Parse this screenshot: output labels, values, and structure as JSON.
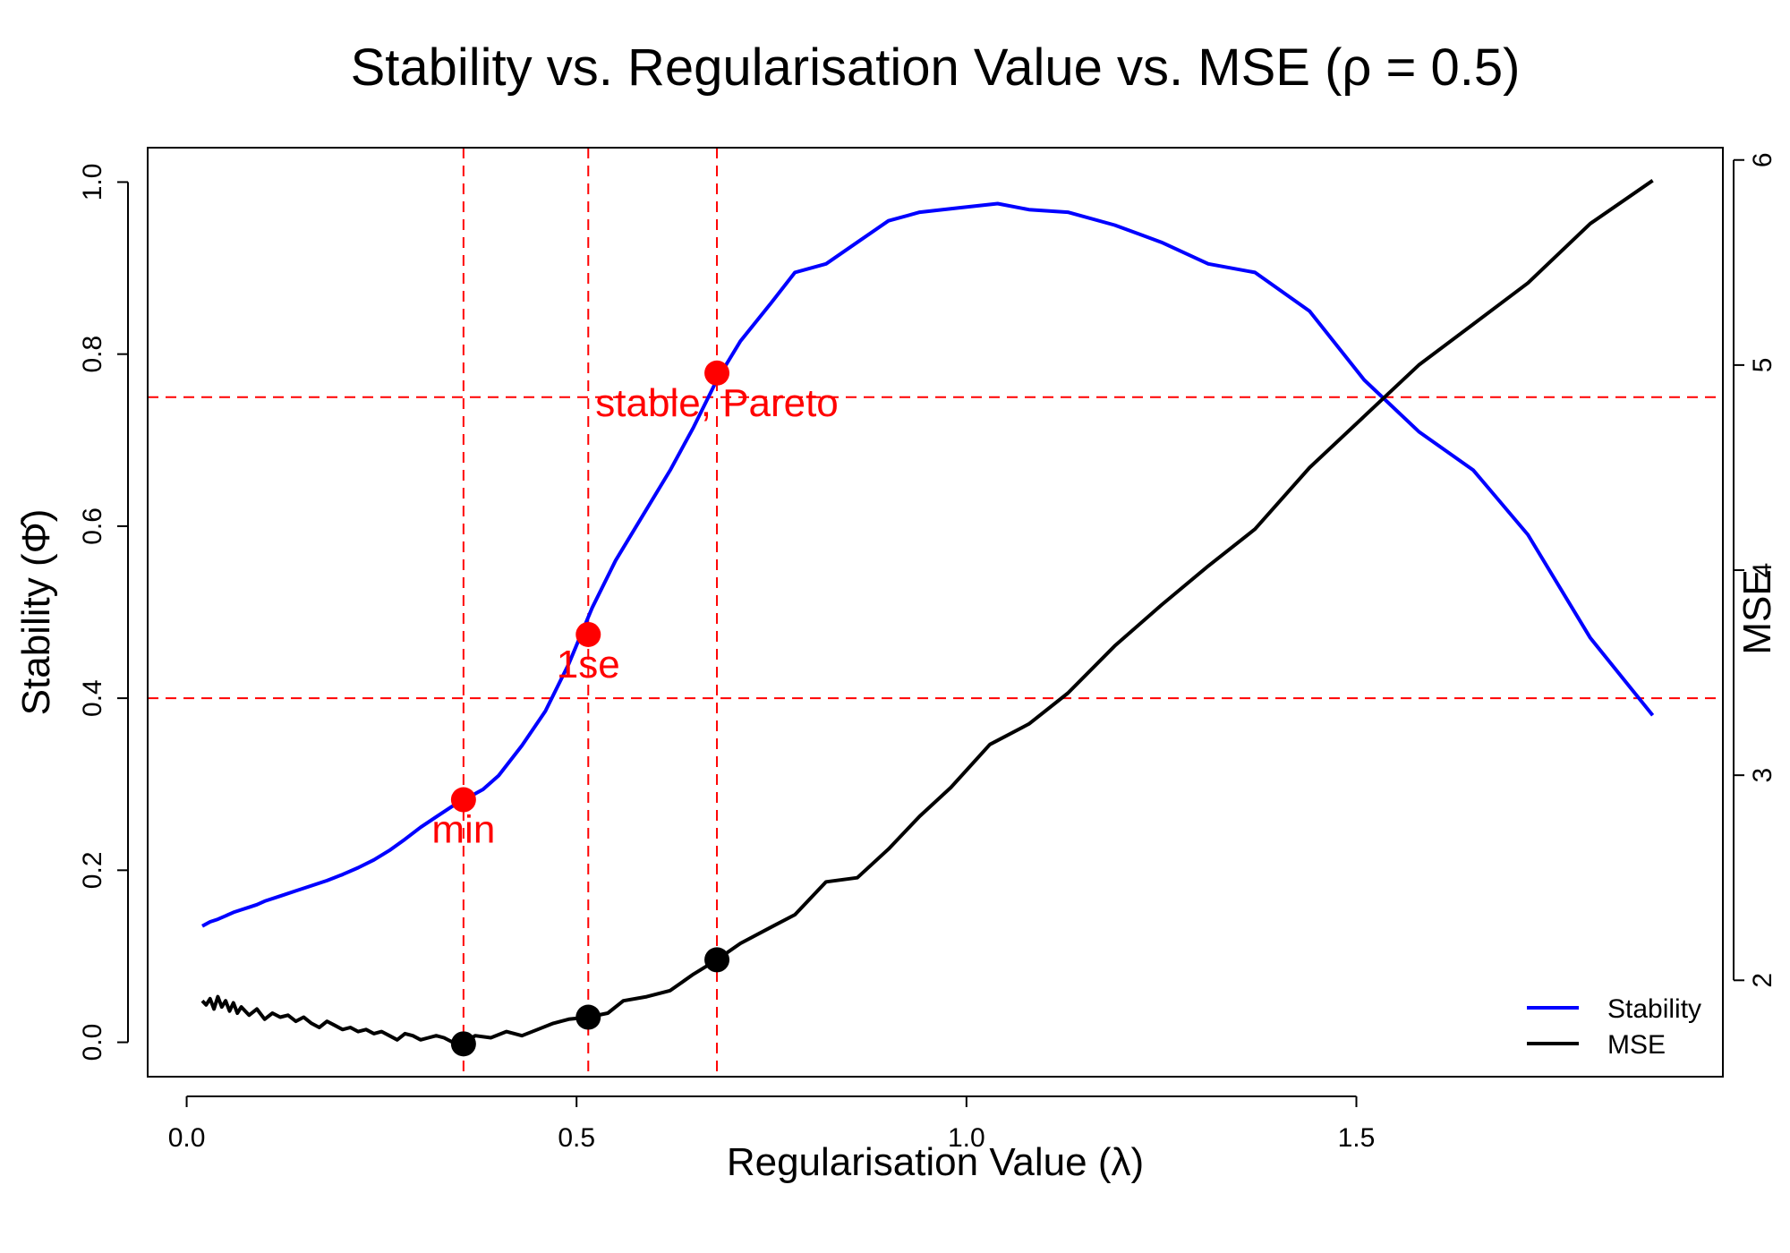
{
  "chart_data": {
    "type": "line",
    "title": "Stability vs. Regularisation Value vs. MSE (ρ = 0.5)",
    "xlabel": "Regularisation Value (λ)",
    "ylabel_left": "Stability (Φ̂)",
    "ylabel_right": "MSE",
    "xlim": [
      -0.05,
      1.97
    ],
    "ylim_left": [
      -0.04,
      1.04
    ],
    "ylim_right": [
      1.53,
      6.06
    ],
    "x_ticks": [
      0.0,
      0.5,
      1.0,
      1.5
    ],
    "x_tick_labels": [
      "0.0",
      "0.5",
      "1.0",
      "1.5"
    ],
    "y_left_ticks": [
      0.0,
      0.2,
      0.4,
      0.6,
      0.8,
      1.0
    ],
    "y_left_tick_labels": [
      "0.0",
      "0.2",
      "0.4",
      "0.6",
      "0.8",
      "1.0"
    ],
    "y_right_ticks": [
      2,
      3,
      4,
      5,
      6
    ],
    "y_right_tick_labels": [
      "2",
      "3",
      "4",
      "5",
      "6"
    ],
    "grid": false,
    "legend_position": "bottom-right",
    "reference_lines": {
      "vertical_x": [
        0.355,
        0.515,
        0.68
      ],
      "horizontal_stability": [
        0.4,
        0.75
      ],
      "color": "#ff0000"
    },
    "series": [
      {
        "name": "Stability",
        "axis": "left",
        "color": "#0000ff",
        "x": [
          0.02,
          0.03,
          0.04,
          0.05,
          0.06,
          0.07,
          0.08,
          0.09,
          0.1,
          0.12,
          0.14,
          0.16,
          0.18,
          0.2,
          0.22,
          0.24,
          0.26,
          0.28,
          0.3,
          0.32,
          0.34,
          0.36,
          0.38,
          0.4,
          0.43,
          0.46,
          0.49,
          0.52,
          0.55,
          0.59,
          0.62,
          0.65,
          0.68,
          0.71,
          0.75,
          0.78,
          0.82,
          0.86,
          0.9,
          0.94,
          0.99,
          1.04,
          1.08,
          1.13,
          1.19,
          1.25,
          1.31,
          1.37,
          1.44,
          1.51,
          1.58,
          1.65,
          1.72,
          1.8,
          1.88
        ],
        "values": [
          0.135,
          0.14,
          0.143,
          0.147,
          0.151,
          0.154,
          0.157,
          0.16,
          0.164,
          0.17,
          0.176,
          0.182,
          0.188,
          0.195,
          0.203,
          0.212,
          0.223,
          0.236,
          0.25,
          0.262,
          0.274,
          0.284,
          0.294,
          0.31,
          0.345,
          0.385,
          0.44,
          0.505,
          0.56,
          0.62,
          0.665,
          0.715,
          0.77,
          0.815,
          0.86,
          0.895,
          0.905,
          0.93,
          0.955,
          0.965,
          0.97,
          0.975,
          0.968,
          0.965,
          0.95,
          0.93,
          0.905,
          0.895,
          0.85,
          0.77,
          0.71,
          0.665,
          0.59,
          0.47,
          0.38
        ]
      },
      {
        "name": "MSE",
        "axis": "right",
        "color": "#000000",
        "x": [
          0.02,
          0.025,
          0.03,
          0.035,
          0.04,
          0.045,
          0.05,
          0.055,
          0.06,
          0.065,
          0.07,
          0.08,
          0.09,
          0.1,
          0.11,
          0.12,
          0.13,
          0.14,
          0.15,
          0.16,
          0.17,
          0.18,
          0.19,
          0.2,
          0.21,
          0.22,
          0.23,
          0.24,
          0.25,
          0.26,
          0.27,
          0.28,
          0.29,
          0.3,
          0.31,
          0.32,
          0.33,
          0.34,
          0.355,
          0.37,
          0.39,
          0.41,
          0.43,
          0.45,
          0.47,
          0.49,
          0.515,
          0.54,
          0.56,
          0.59,
          0.62,
          0.65,
          0.68,
          0.71,
          0.75,
          0.78,
          0.82,
          0.86,
          0.9,
          0.94,
          0.98,
          1.03,
          1.08,
          1.13,
          1.19,
          1.25,
          1.31,
          1.37,
          1.44,
          1.51,
          1.58,
          1.65,
          1.72,
          1.8,
          1.88
        ],
        "values": [
          1.9,
          1.88,
          1.91,
          1.86,
          1.92,
          1.87,
          1.9,
          1.85,
          1.89,
          1.84,
          1.87,
          1.83,
          1.86,
          1.81,
          1.84,
          1.82,
          1.83,
          1.8,
          1.82,
          1.79,
          1.77,
          1.8,
          1.78,
          1.76,
          1.77,
          1.75,
          1.76,
          1.74,
          1.75,
          1.73,
          1.71,
          1.74,
          1.73,
          1.71,
          1.72,
          1.73,
          1.72,
          1.7,
          1.69,
          1.73,
          1.72,
          1.75,
          1.73,
          1.76,
          1.79,
          1.81,
          1.82,
          1.84,
          1.9,
          1.92,
          1.95,
          2.03,
          2.1,
          2.18,
          2.26,
          2.32,
          2.48,
          2.5,
          2.64,
          2.8,
          2.94,
          3.15,
          3.25,
          3.4,
          3.63,
          3.83,
          4.02,
          4.2,
          4.5,
          4.75,
          5.0,
          5.2,
          5.4,
          5.69,
          5.9
        ]
      }
    ],
    "highlight_points": [
      {
        "label": "min",
        "x": 0.355,
        "stability": 0.282,
        "mse": 1.69
      },
      {
        "label": "1se",
        "x": 0.515,
        "stability": 0.474,
        "mse": 1.82
      },
      {
        "label": "stable, Pareto",
        "x": 0.68,
        "stability": 0.778,
        "mse": 2.1
      }
    ],
    "marker_colors": {
      "stability_point": "#ff0000",
      "mse_point": "#000000",
      "annotation_text": "#ff0000"
    }
  }
}
